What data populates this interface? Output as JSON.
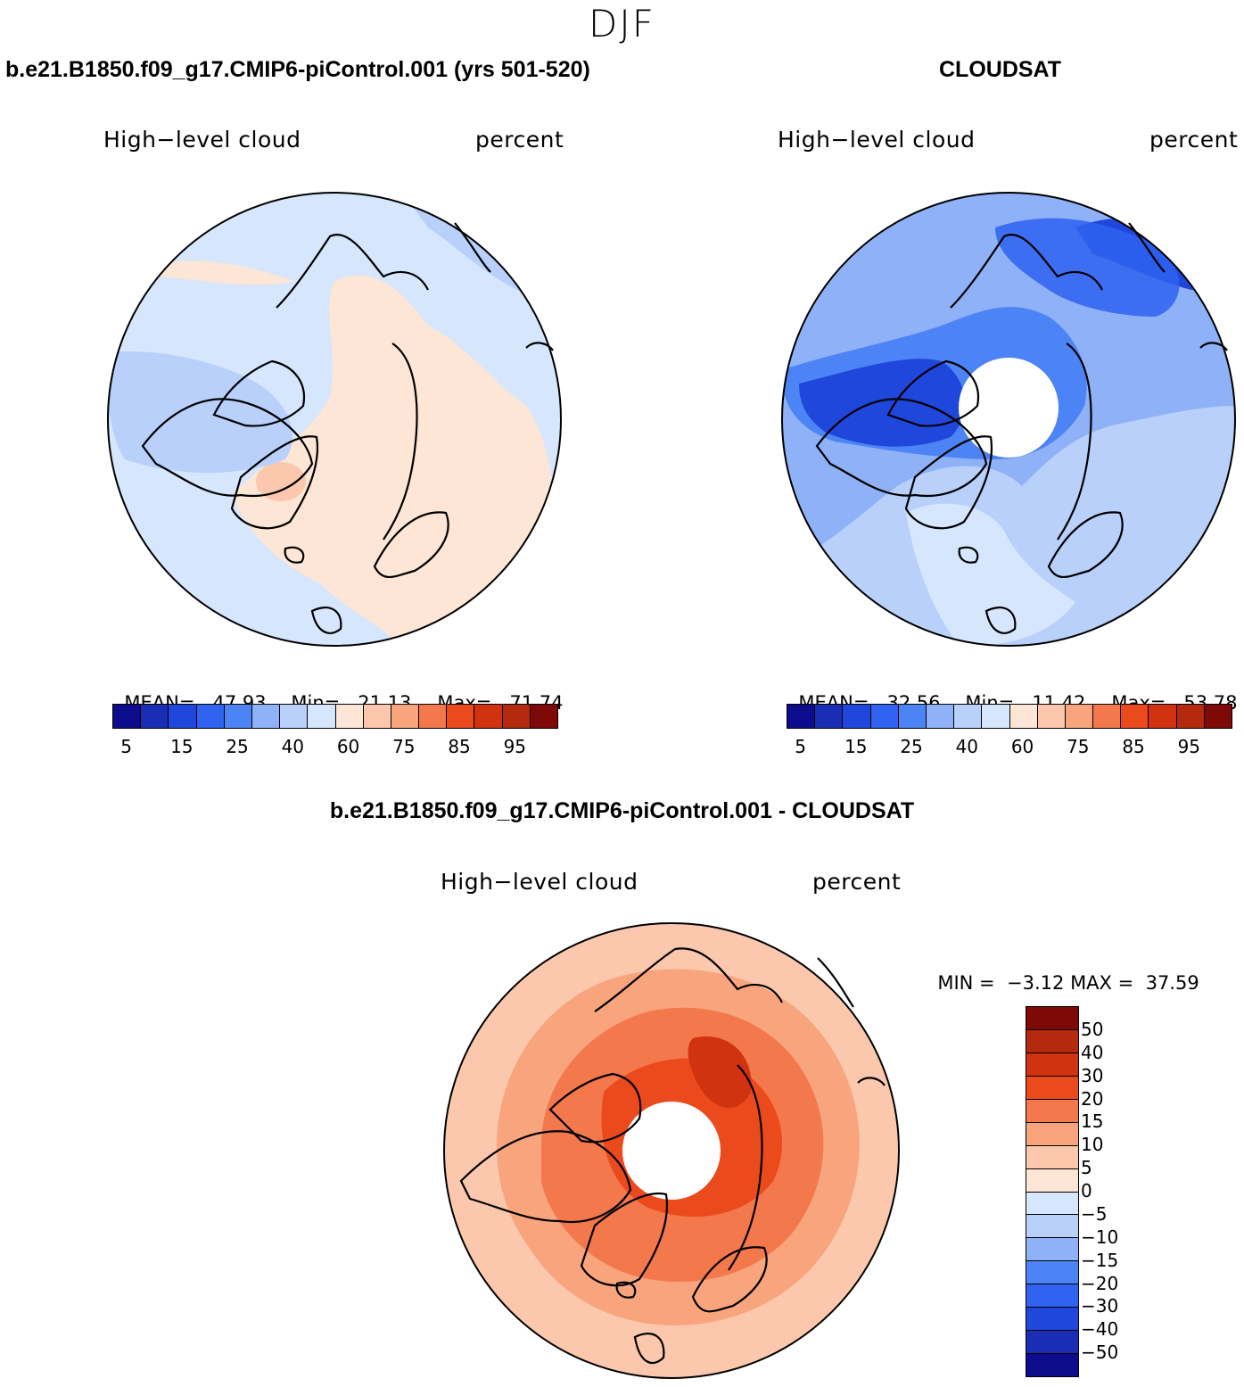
{
  "figure": {
    "title": "DJF"
  },
  "colors": {
    "abs_scale": [
      "#0c0c8c",
      "#1a2db5",
      "#1f47dc",
      "#2f63f0",
      "#4d84f5",
      "#8eb1f7",
      "#b8d0fa",
      "#d6e6fc",
      "#fde6d5",
      "#fbc8ad",
      "#f8a57e",
      "#f3784c",
      "#eb4a1d",
      "#d1320f",
      "#b32a0e",
      "#7e0906"
    ],
    "diff_scale": [
      "#7e0906",
      "#b32a0e",
      "#d1320f",
      "#eb4a1d",
      "#f3784c",
      "#f8a57e",
      "#fbc8ad",
      "#fde6d5",
      "#d6e6fc",
      "#b8d0fa",
      "#8eb1f7",
      "#4d84f5",
      "#2f63f0",
      "#1f47dc",
      "#1a2db5",
      "#0c0c8c"
    ]
  },
  "chart_data": [
    {
      "type": "heatmap",
      "projection": "north-polar-stereographic",
      "title": "b.e21.B1850.f09_g17.CMIP6-piControl.001 (yrs 501-520)",
      "variable": "High−level cloud",
      "units": "percent",
      "stats": {
        "mean_label": "MEAN=",
        "mean": "47.93",
        "min_label": "Min=",
        "min": "21.13",
        "max_label": "Max=",
        "max": "71.74"
      },
      "levels": [
        "5",
        "15",
        "25",
        "40",
        "60",
        "75",
        "85",
        "95"
      ],
      "dominant_ranges": [
        "40-50",
        "50-55",
        "30-40"
      ]
    },
    {
      "type": "heatmap",
      "projection": "north-polar-stereographic",
      "title": "CLOUDSAT",
      "variable": "High−level cloud",
      "units": "percent",
      "stats": {
        "mean_label": "MEAN=",
        "mean": "32.56",
        "min_label": "Min=",
        "min": "11.42",
        "max_label": "Max=",
        "max": "53.78"
      },
      "levels": [
        "5",
        "15",
        "25",
        "40",
        "60",
        "75",
        "85",
        "95"
      ],
      "dominant_ranges": [
        "30-40",
        "20-30",
        "10-20"
      ]
    },
    {
      "type": "heatmap",
      "projection": "north-polar-stereographic",
      "title": "b.e21.B1850.f09_g17.CMIP6-piControl.001 - CLOUDSAT",
      "variable": "High−level cloud",
      "units": "percent",
      "stats": {
        "min_label": "MIN =",
        "min": "−3.12",
        "max_label": "MAX =",
        "max": "37.59"
      },
      "levels": [
        "50",
        "40",
        "30",
        "20",
        "15",
        "10",
        "5",
        "0",
        "−5",
        "−10",
        "−15",
        "−20",
        "−30",
        "−40",
        "−50"
      ],
      "dominant_ranges": [
        "10-20",
        "5-10",
        "20-30"
      ]
    }
  ]
}
